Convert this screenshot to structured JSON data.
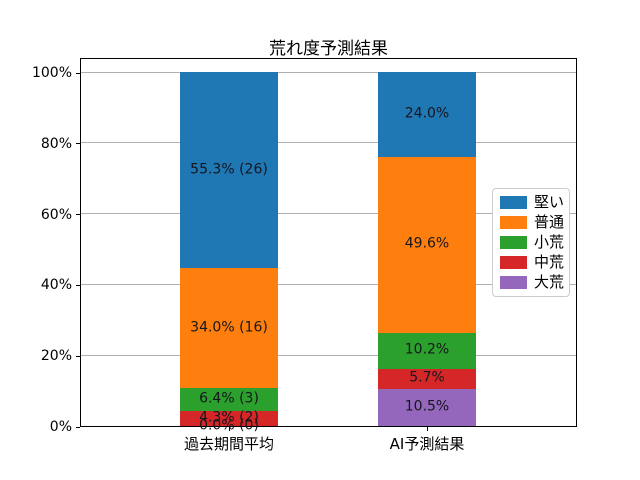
{
  "chart_data": {
    "type": "bar",
    "stacked": true,
    "orientation": "vertical",
    "title": "荒れ度予測結果",
    "categories": [
      "過去期間平均",
      "AI予測結果"
    ],
    "series": [
      {
        "name": "堅い",
        "color": "#1f77b4",
        "values": [
          55.3,
          24.0
        ],
        "labels": [
          "55.3% (26)",
          "24.0%"
        ]
      },
      {
        "name": "普通",
        "color": "#ff7f0e",
        "values": [
          34.0,
          49.6
        ],
        "labels": [
          "34.0% (16)",
          "49.6%"
        ]
      },
      {
        "name": "小荒",
        "color": "#2ca02c",
        "values": [
          6.4,
          10.2
        ],
        "labels": [
          "6.4% (3)",
          "10.2%"
        ]
      },
      {
        "name": "中荒",
        "color": "#d62728",
        "values": [
          4.3,
          5.7
        ],
        "labels": [
          "4.3% (2)",
          "5.7%"
        ]
      },
      {
        "name": "大荒",
        "color": "#9467bd",
        "values": [
          0.0,
          10.5
        ],
        "labels": [
          "0.0% (0)",
          "10.5%"
        ]
      }
    ],
    "stack_order_bottom_to_top": [
      "大荒",
      "中荒",
      "小荒",
      "普通",
      "堅い"
    ],
    "ylim": [
      0,
      100
    ],
    "yticks": [
      {
        "value": 0,
        "label": "0%"
      },
      {
        "value": 20,
        "label": "20%"
      },
      {
        "value": 40,
        "label": "40%"
      },
      {
        "value": 60,
        "label": "60%"
      },
      {
        "value": 80,
        "label": "80%"
      },
      {
        "value": 100,
        "label": "100%"
      }
    ],
    "grid": true,
    "legend": {
      "position": "center-right",
      "entries": [
        "堅い",
        "普通",
        "小荒",
        "中荒",
        "大荒"
      ]
    }
  }
}
